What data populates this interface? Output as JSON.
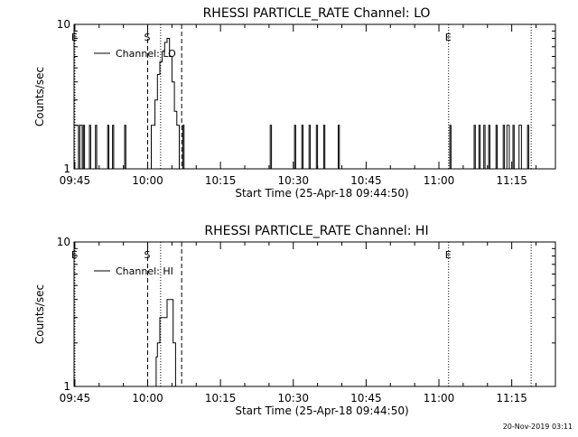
{
  "footer_stamp": "20-Nov-2019 03:11",
  "chart_data": [
    {
      "type": "line",
      "title": "RHESSI PARTICLE_RATE Channel: LO",
      "xlabel": "Start Time (25-Apr-18 09:44:50)",
      "ylabel": "Counts/sec",
      "y_scale": "log",
      "ylim": [
        1,
        10
      ],
      "y_ticks": [
        {
          "value": 1,
          "label": "1"
        },
        {
          "value": 10,
          "label": "10"
        }
      ],
      "xlim": [
        "09:44:50",
        "11:24:00"
      ],
      "x_ticks": [
        "09:45",
        "10:00",
        "10:15",
        "10:30",
        "10:45",
        "11:00",
        "11:15"
      ],
      "legend": {
        "position": "top-left",
        "entries": [
          "Channel: LO"
        ]
      },
      "series": [
        {
          "name": "Channel: LO",
          "x": [
            "09:44:50",
            "09:45:30",
            "09:45:45",
            "09:46:00",
            "09:46:30",
            "09:46:45",
            "09:47:00",
            "09:47:45",
            "09:48:00",
            "09:48:15",
            "09:49:00",
            "09:49:15",
            "09:49:30",
            "09:51:30",
            "09:51:45",
            "09:52:00",
            "09:52:30",
            "09:52:45",
            "09:53:00",
            "09:55:00",
            "09:55:15",
            "09:55:30",
            "10:00:30",
            "10:00:45",
            "10:01:00",
            "10:01:30",
            "10:02:00",
            "10:02:30",
            "10:03:00",
            "10:03:30",
            "10:04:00",
            "10:04:30",
            "10:05:00",
            "10:05:30",
            "10:06:00",
            "10:06:30",
            "10:07:00",
            "10:07:15",
            "10:07:30",
            "10:25:00",
            "10:25:15",
            "10:25:30",
            "10:30:00",
            "10:30:15",
            "10:30:30",
            "10:31:30",
            "10:31:45",
            "10:32:00",
            "10:33:00",
            "10:33:15",
            "10:33:30",
            "10:34:30",
            "10:34:45",
            "10:35:00",
            "10:36:00",
            "10:36:15",
            "10:36:30",
            "10:39:00",
            "10:39:15",
            "10:39:30",
            "11:02:00",
            "11:02:15",
            "11:02:30",
            "11:07:00",
            "11:07:15",
            "11:07:30",
            "11:08:00",
            "11:08:15",
            "11:08:30",
            "11:09:00",
            "11:09:15",
            "11:09:30",
            "11:10:00",
            "11:10:15",
            "11:10:30",
            "11:11:30",
            "11:11:45",
            "11:12:00",
            "11:13:00",
            "11:13:15",
            "11:13:30",
            "11:14:00",
            "11:14:15",
            "11:14:30",
            "11:15:00",
            "11:15:15",
            "11:15:30",
            "11:16:30",
            "11:16:45",
            "11:17:00",
            "11:18:00",
            "11:18:15",
            "11:18:30"
          ],
          "y": [
            2,
            2,
            1,
            2,
            1,
            2,
            1,
            1,
            2,
            1,
            1,
            2,
            1,
            1,
            2,
            1,
            1,
            2,
            1,
            1,
            2,
            1,
            1,
            2,
            2,
            3,
            4.5,
            5.5,
            6.5,
            7.5,
            8,
            6,
            4,
            2.5,
            2,
            1,
            1,
            2,
            1,
            1,
            2,
            1,
            1,
            2,
            1,
            1,
            2,
            1,
            1,
            2,
            1,
            1,
            2,
            1,
            1,
            2,
            1,
            1,
            2,
            1,
            1,
            2,
            1,
            1,
            2,
            1,
            1,
            2,
            1,
            1,
            2,
            1,
            1,
            2,
            1,
            1,
            2,
            1,
            1,
            2,
            1,
            2,
            2,
            1,
            1,
            2,
            1,
            2,
            2,
            1,
            1,
            2,
            1
          ]
        }
      ],
      "vlines": [
        {
          "label": "E",
          "time": "09:45:00",
          "style": "dotted"
        },
        {
          "label": "S",
          "time": "10:00:00",
          "style": "dashed"
        },
        {
          "label": "",
          "time": "10:02:40",
          "style": "dotted"
        },
        {
          "label": "",
          "time": "10:07:00",
          "style": "dashed"
        },
        {
          "label": "E",
          "time": "11:02:00",
          "style": "dotted"
        },
        {
          "label": "",
          "time": "11:19:00",
          "style": "dotted"
        }
      ]
    },
    {
      "type": "line",
      "title": "RHESSI PARTICLE_RATE Channel: HI",
      "xlabel": "Start Time (25-Apr-18 09:44:50)",
      "ylabel": "Counts/sec",
      "y_scale": "log",
      "ylim": [
        1,
        10
      ],
      "y_ticks": [
        {
          "value": 1,
          "label": "1"
        },
        {
          "value": 10,
          "label": "10"
        }
      ],
      "xlim": [
        "09:44:50",
        "11:24:00"
      ],
      "x_ticks": [
        "09:45",
        "10:00",
        "10:15",
        "10:30",
        "10:45",
        "11:00",
        "11:15"
      ],
      "legend": {
        "position": "top-left",
        "entries": [
          "Channel: HI"
        ]
      },
      "series": [
        {
          "name": "Channel: HI",
          "x": [
            "10:01:30",
            "10:01:45",
            "10:02:00",
            "10:02:30",
            "10:03:00",
            "10:03:30",
            "10:04:00",
            "10:04:30",
            "10:05:00",
            "10:05:15",
            "10:05:45"
          ],
          "y": [
            1,
            1.6,
            2,
            3,
            3,
            3,
            4,
            4,
            4,
            2,
            1
          ]
        }
      ],
      "vlines": [
        {
          "label": "E",
          "time": "09:45:00",
          "style": "dotted"
        },
        {
          "label": "S",
          "time": "10:00:00",
          "style": "dashed"
        },
        {
          "label": "",
          "time": "10:02:40",
          "style": "dotted"
        },
        {
          "label": "",
          "time": "10:07:00",
          "style": "dashed"
        },
        {
          "label": "E",
          "time": "11:02:00",
          "style": "dotted"
        },
        {
          "label": "",
          "time": "11:19:00",
          "style": "dotted"
        }
      ]
    }
  ]
}
